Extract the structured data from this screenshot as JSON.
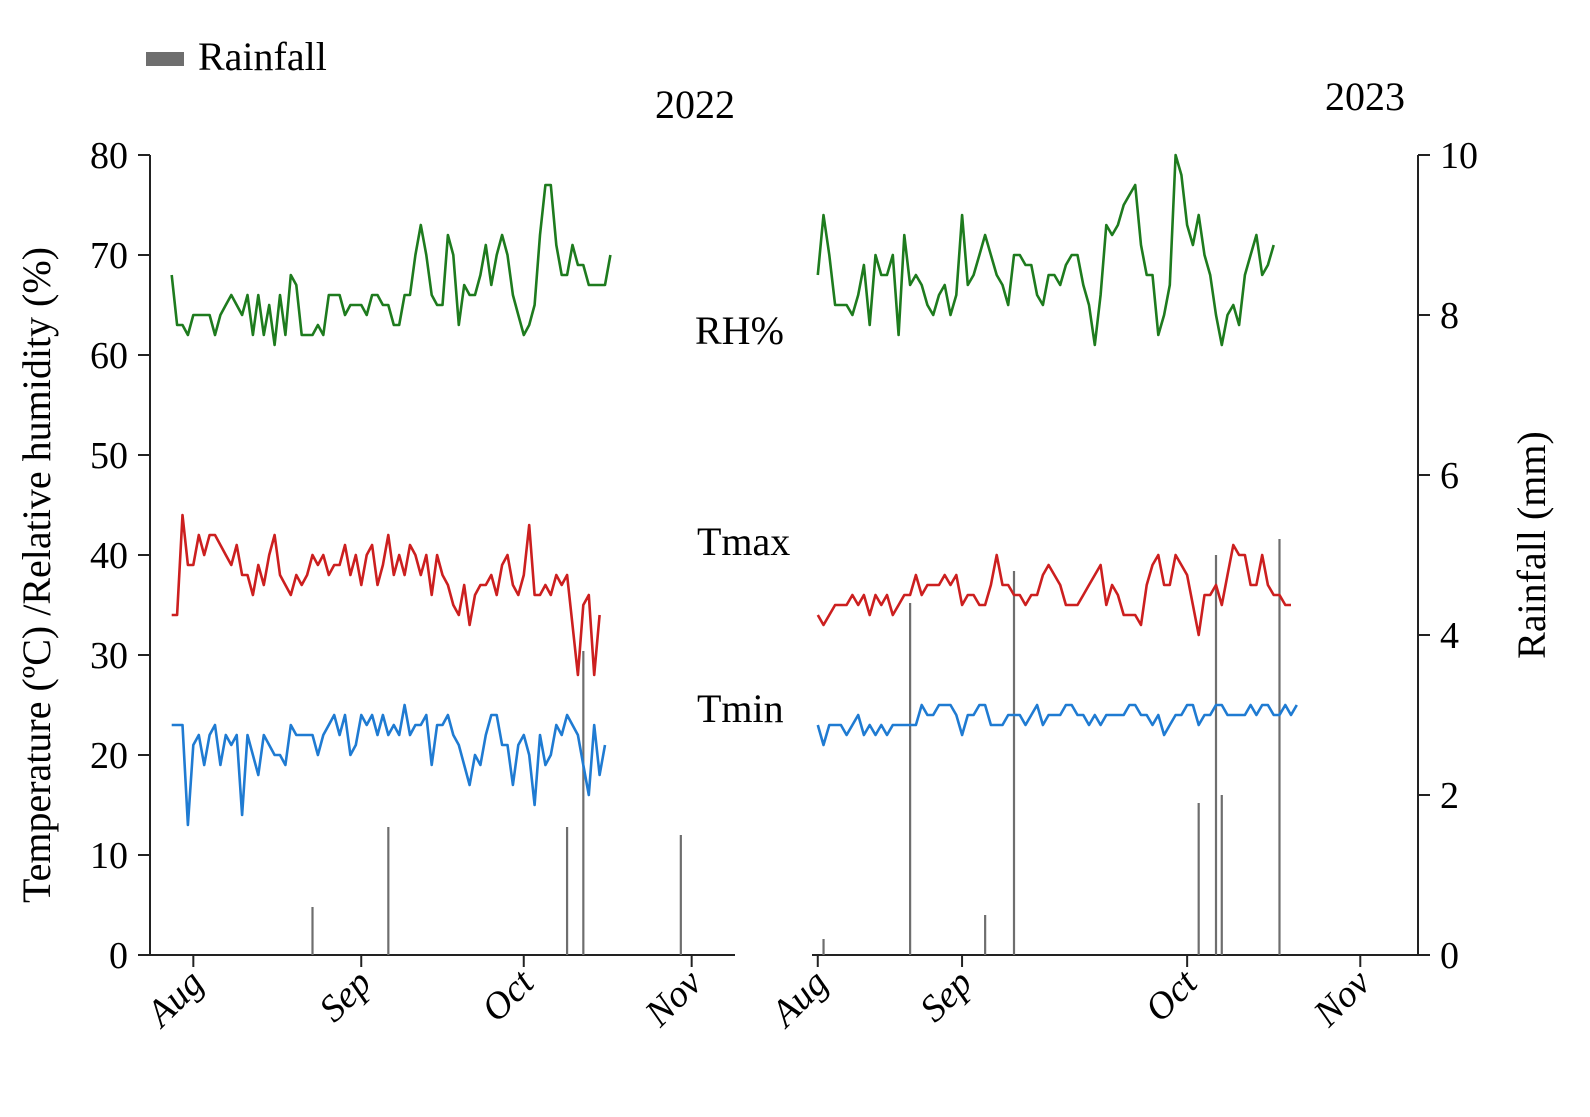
{
  "legend": {
    "rainfall_label": "Rainfall"
  },
  "colors": {
    "rh": "#1e7b1e",
    "tmax": "#cc1f1f",
    "tmin": "#1f7bd2",
    "rain": "#6e6e6e",
    "axis": "#222222"
  },
  "chart_data": {
    "type": "line",
    "title": "",
    "ylabel_left": "Temperature (ºC) /Relative humidity (%)",
    "ylabel_right": "Rainfall (mm)",
    "ylim_left": [
      0,
      80
    ],
    "ylim_right": [
      0,
      10
    ],
    "left_ticks": [
      "0",
      "10",
      "20",
      "30",
      "40",
      "50",
      "60",
      "70",
      "80"
    ],
    "right_ticks": [
      "0",
      "2",
      "4",
      "6",
      "8",
      "10"
    ],
    "series_labels": {
      "rh": "RH%",
      "tmax": "Tmax",
      "tmin": "Tmin"
    },
    "panels": [
      {
        "year": "2022",
        "x_range": [
          -4,
          104
        ],
        "months": [
          {
            "label": "Aug",
            "day": 4
          },
          {
            "label": "Sep",
            "day": 35
          },
          {
            "label": "Oct",
            "day": 65
          },
          {
            "label": "Nov",
            "day": 96
          }
        ],
        "rh": [
          68,
          63,
          63,
          62,
          64,
          64,
          64,
          64,
          62,
          64,
          65,
          66,
          65,
          64,
          66,
          62,
          66,
          62,
          65,
          61,
          66,
          62,
          68,
          67,
          62,
          62,
          62,
          63,
          62,
          66,
          66,
          66,
          64,
          65,
          65,
          65,
          64,
          66,
          66,
          65,
          65,
          63,
          63,
          66,
          66,
          70,
          73,
          70,
          66,
          65,
          65,
          72,
          70,
          63,
          67,
          66,
          66,
          68,
          71,
          67,
          70,
          72,
          70,
          66,
          64,
          62,
          63,
          65,
          72,
          77,
          77,
          71,
          68,
          68,
          71,
          69,
          69,
          67,
          67,
          67,
          67,
          70
        ],
        "tmax": [
          34,
          34,
          44,
          39,
          39,
          42,
          40,
          42,
          42,
          41,
          40,
          39,
          41,
          38,
          38,
          36,
          39,
          37,
          40,
          42,
          38,
          37,
          36,
          38,
          37,
          38,
          40,
          39,
          40,
          38,
          39,
          39,
          41,
          38,
          40,
          37,
          40,
          41,
          37,
          39,
          42,
          38,
          40,
          38,
          41,
          40,
          38,
          40,
          36,
          40,
          38,
          37,
          35,
          34,
          37,
          33,
          36,
          37,
          37,
          38,
          36,
          39,
          40,
          37,
          36,
          38,
          43,
          36,
          36,
          37,
          36,
          38,
          37,
          38,
          33,
          28,
          35,
          36,
          28,
          34
        ],
        "tmin": [
          23,
          23,
          23,
          13,
          21,
          22,
          19,
          22,
          23,
          19,
          22,
          21,
          22,
          14,
          22,
          20,
          18,
          22,
          21,
          20,
          20,
          19,
          23,
          22,
          22,
          22,
          22,
          20,
          22,
          23,
          24,
          22,
          24,
          20,
          21,
          24,
          23,
          24,
          22,
          24,
          22,
          23,
          22,
          25,
          22,
          23,
          23,
          24,
          19,
          23,
          23,
          24,
          22,
          21,
          19,
          17,
          20,
          19,
          22,
          24,
          24,
          21,
          21,
          17,
          21,
          22,
          20,
          15,
          22,
          19,
          20,
          23,
          22,
          24,
          23,
          22,
          19,
          16,
          23,
          18,
          21
        ],
        "rain": [
          {
            "day": 26,
            "mm": 0.6
          },
          {
            "day": 40,
            "mm": 1.6
          },
          {
            "day": 73,
            "mm": 1.6
          },
          {
            "day": 76,
            "mm": 3.8
          },
          {
            "day": 94,
            "mm": 1.5
          }
        ]
      },
      {
        "year": "2023",
        "x_range": [
          -1,
          104
        ],
        "months": [
          {
            "label": "Aug",
            "day": 0
          },
          {
            "label": "Sep",
            "day": 25
          },
          {
            "label": "Oct",
            "day": 64
          },
          {
            "label": "Nov",
            "day": 94
          }
        ],
        "rh": [
          68,
          74,
          70,
          65,
          65,
          65,
          64,
          66,
          69,
          63,
          70,
          68,
          68,
          70,
          62,
          72,
          67,
          68,
          67,
          65,
          64,
          66,
          67,
          64,
          66,
          74,
          67,
          68,
          70,
          72,
          70,
          68,
          67,
          65,
          70,
          70,
          69,
          69,
          66,
          65,
          68,
          68,
          67,
          69,
          70,
          70,
          67,
          65,
          61,
          66,
          73,
          72,
          73,
          75,
          76,
          77,
          71,
          68,
          68,
          62,
          64,
          67,
          80,
          78,
          73,
          71,
          74,
          70,
          68,
          64,
          61,
          64,
          65,
          63,
          68,
          70,
          72,
          68,
          69,
          71
        ],
        "tmax": [
          34,
          33,
          34,
          35,
          35,
          35,
          36,
          35,
          36,
          34,
          36,
          35,
          36,
          34,
          35,
          36,
          36,
          38,
          36,
          37,
          37,
          37,
          38,
          37,
          38,
          35,
          36,
          36,
          35,
          35,
          37,
          40,
          37,
          37,
          36,
          36,
          35,
          36,
          36,
          38,
          39,
          38,
          37,
          35,
          35,
          35,
          36,
          37,
          38,
          39,
          35,
          37,
          36,
          34,
          34,
          34,
          33,
          37,
          39,
          40,
          37,
          37,
          40,
          39,
          38,
          35,
          32,
          36,
          36,
          37,
          35,
          38,
          41,
          40,
          40,
          37,
          37,
          40,
          37,
          36,
          36,
          35,
          35
        ],
        "tmin": [
          23,
          21,
          23,
          23,
          23,
          22,
          23,
          24,
          22,
          23,
          22,
          23,
          22,
          23,
          23,
          23,
          23,
          23,
          25,
          24,
          24,
          25,
          25,
          25,
          24,
          22,
          24,
          24,
          25,
          25,
          23,
          23,
          23,
          24,
          24,
          24,
          23,
          24,
          25,
          23,
          24,
          24,
          24,
          25,
          25,
          24,
          24,
          23,
          24,
          23,
          24,
          24,
          24,
          24,
          25,
          25,
          24,
          24,
          23,
          24,
          22,
          23,
          24,
          24,
          25,
          25,
          23,
          24,
          24,
          25,
          25,
          24,
          24,
          24,
          24,
          25,
          24,
          25,
          25,
          24,
          24,
          25,
          24,
          25
        ],
        "rain": [
          {
            "day": 1,
            "mm": 0.2
          },
          {
            "day": 16,
            "mm": 4.4
          },
          {
            "day": 29,
            "mm": 0.5
          },
          {
            "day": 34,
            "mm": 4.8
          },
          {
            "day": 66,
            "mm": 1.9
          },
          {
            "day": 69,
            "mm": 5.0
          },
          {
            "day": 70,
            "mm": 2.0
          },
          {
            "day": 80,
            "mm": 5.2
          }
        ]
      }
    ]
  }
}
